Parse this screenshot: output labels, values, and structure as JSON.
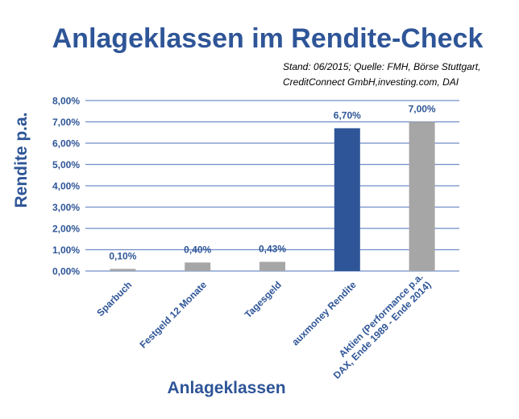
{
  "chart_data": {
    "type": "bar",
    "title": "Anlageklassen im Rendite-Check",
    "source_line1": "Stand: 06/2015; Quelle: FMH, Börse Stuttgart,",
    "source_line2": "CreditConnect GmbH,investing.com, DAI",
    "xlabel": "Anlageklassen",
    "ylabel": "Rendite p.a.",
    "ylim": [
      0,
      8
    ],
    "yticks": [
      {
        "value": 0,
        "label": "0,00%"
      },
      {
        "value": 1,
        "label": "1,00%"
      },
      {
        "value": 2,
        "label": "2,00%"
      },
      {
        "value": 3,
        "label": "3,00%"
      },
      {
        "value": 4,
        "label": "4,00%"
      },
      {
        "value": 5,
        "label": "5,00%"
      },
      {
        "value": 6,
        "label": "6,00%"
      },
      {
        "value": 7,
        "label": "7,00%"
      },
      {
        "value": 8,
        "label": "8,00%"
      }
    ],
    "grid": true,
    "categories": [
      [
        "Sparbuch"
      ],
      [
        "Festgeld 12 Monate"
      ],
      [
        "Tagesgeld"
      ],
      [
        "auxmoney Rendite"
      ],
      [
        "Aktien (Performance p.a.",
        "DAX, Ende 1989 - Ende 2014)"
      ]
    ],
    "values": [
      0.1,
      0.4,
      0.43,
      6.7,
      7.0
    ],
    "value_labels": [
      "0,10%",
      "0,40%",
      "0,43%",
      "6,70%",
      "7,00%"
    ],
    "bar_colors": [
      "#a6a6a6",
      "#a6a6a6",
      "#a6a6a6",
      "#2e5597",
      "#a6a6a6"
    ],
    "colors": {
      "accent": "#2e5597",
      "text": "#2e5597",
      "grid": "#6f8dc8",
      "bar_default": "#a6a6a6",
      "source_text": "#000000"
    }
  }
}
